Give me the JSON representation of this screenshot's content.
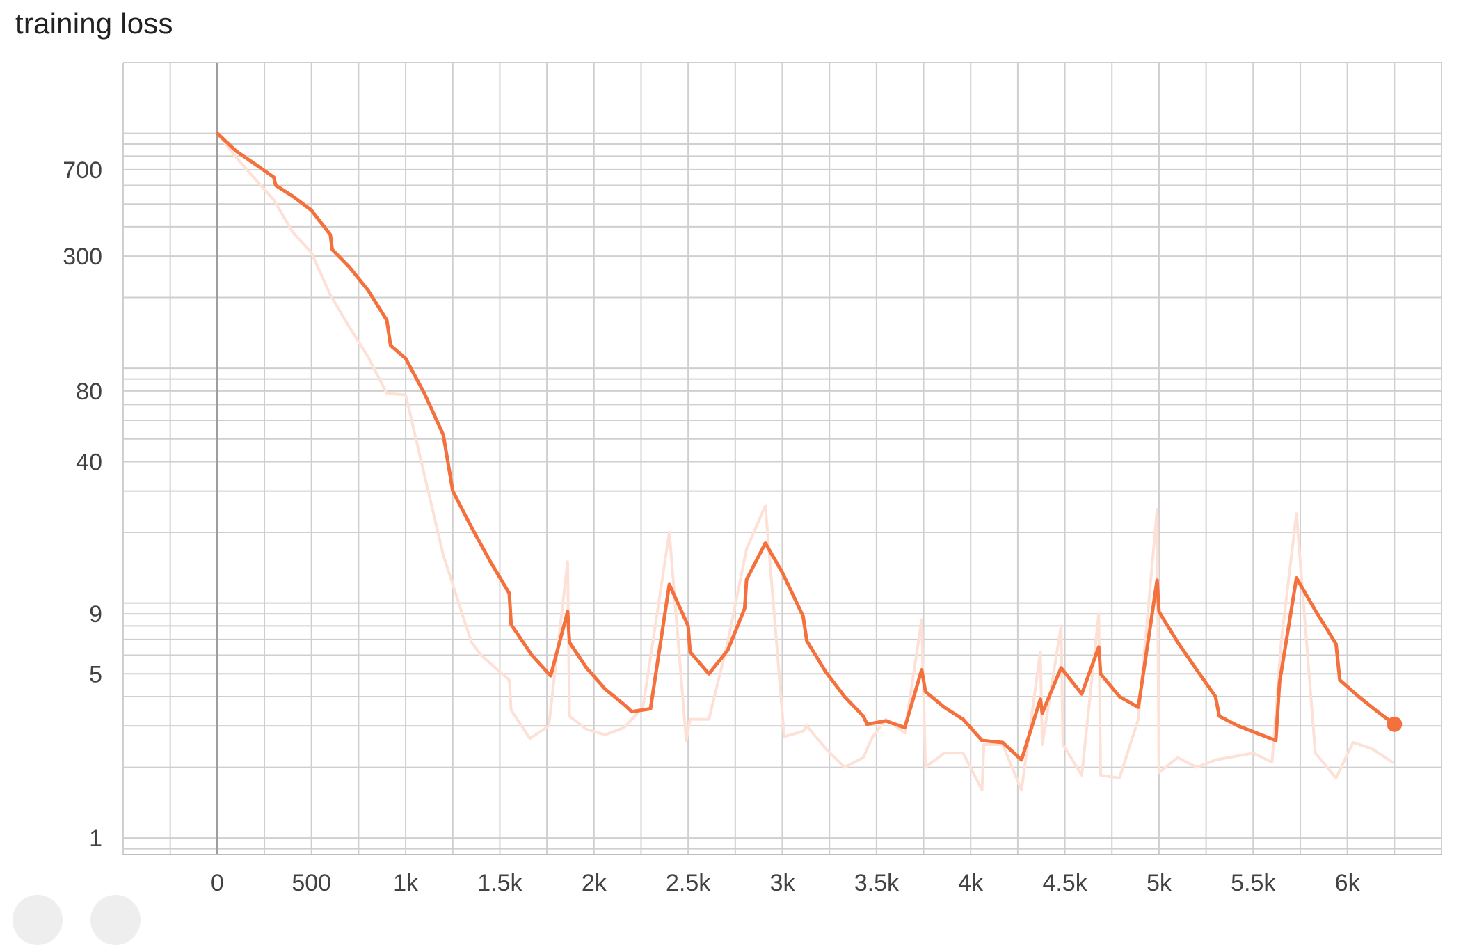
{
  "chart_data": {
    "type": "line",
    "title": "training loss",
    "yscale": "log",
    "xlim": [
      -500,
      6500
    ],
    "ylim": [
      0.85,
      2000
    ],
    "x_ticks": [
      {
        "value": 0,
        "label": "0"
      },
      {
        "value": 500,
        "label": "500"
      },
      {
        "value": 1000,
        "label": "1k"
      },
      {
        "value": 1500,
        "label": "1.5k"
      },
      {
        "value": 2000,
        "label": "2k"
      },
      {
        "value": 2500,
        "label": "2.5k"
      },
      {
        "value": 3000,
        "label": "3k"
      },
      {
        "value": 3500,
        "label": "3.5k"
      },
      {
        "value": 4000,
        "label": "4k"
      },
      {
        "value": 4500,
        "label": "4.5k"
      },
      {
        "value": 5000,
        "label": "5k"
      },
      {
        "value": 5500,
        "label": "5.5k"
      },
      {
        "value": 6000,
        "label": "6k"
      }
    ],
    "y_ticks": [
      {
        "value": 1,
        "label": "1"
      },
      {
        "value": 5,
        "label": "5"
      },
      {
        "value": 9,
        "label": "9"
      },
      {
        "value": 40,
        "label": "40"
      },
      {
        "value": 80,
        "label": "80"
      },
      {
        "value": 300,
        "label": "300"
      },
      {
        "value": 700,
        "label": "700"
      }
    ],
    "grid": true,
    "colors": {
      "smoothed": "#f4703c",
      "raw": "#fde0d6",
      "grid": "#cfcfcf",
      "zero_axis": "#9e9e9e"
    },
    "series": [
      {
        "role": "raw",
        "points": [
          [
            0,
            1000
          ],
          [
            100,
            790
          ],
          [
            200,
            640
          ],
          [
            300,
            520
          ],
          [
            400,
            380
          ],
          [
            500,
            310
          ],
          [
            600,
            205
          ],
          [
            700,
            150
          ],
          [
            800,
            112
          ],
          [
            900,
            78
          ],
          [
            1000,
            77
          ],
          [
            1100,
            35
          ],
          [
            1200,
            16
          ],
          [
            1300,
            9
          ],
          [
            1350,
            6.8
          ],
          [
            1400,
            6.0
          ],
          [
            1500,
            5.1
          ],
          [
            1550,
            4.7
          ],
          [
            1560,
            3.5
          ],
          [
            1660,
            2.65
          ],
          [
            1760,
            3.0
          ],
          [
            1860,
            15
          ],
          [
            1870,
            3.3
          ],
          [
            1960,
            2.9
          ],
          [
            2060,
            2.75
          ],
          [
            2160,
            2.95
          ],
          [
            2260,
            3.6
          ],
          [
            2400,
            20
          ],
          [
            2490,
            2.6
          ],
          [
            2510,
            3.2
          ],
          [
            2610,
            3.2
          ],
          [
            2710,
            6.8
          ],
          [
            2810,
            17
          ],
          [
            2910,
            26
          ],
          [
            3010,
            2.7
          ],
          [
            3110,
            2.85
          ],
          [
            3130,
            3.0
          ],
          [
            3230,
            2.4
          ],
          [
            3330,
            2.0
          ],
          [
            3430,
            2.2
          ],
          [
            3480,
            2.7
          ],
          [
            3550,
            3.2
          ],
          [
            3650,
            2.8
          ],
          [
            3740,
            8.5
          ],
          [
            3760,
            2.0
          ],
          [
            3860,
            2.3
          ],
          [
            3960,
            2.3
          ],
          [
            4060,
            1.6
          ],
          [
            4070,
            2.5
          ],
          [
            4170,
            2.5
          ],
          [
            4270,
            1.6
          ],
          [
            4370,
            6.2
          ],
          [
            4380,
            2.5
          ],
          [
            4480,
            8
          ],
          [
            4490,
            2.5
          ],
          [
            4590,
            1.85
          ],
          [
            4680,
            9
          ],
          [
            4690,
            1.85
          ],
          [
            4790,
            1.8
          ],
          [
            4890,
            3.2
          ],
          [
            4990,
            25
          ],
          [
            5000,
            1.9
          ],
          [
            5100,
            2.2
          ],
          [
            5200,
            2.0
          ],
          [
            5300,
            2.15
          ],
          [
            5500,
            2.3
          ],
          [
            5600,
            2.1
          ],
          [
            5650,
            7
          ],
          [
            5730,
            24
          ],
          [
            5830,
            2.3
          ],
          [
            5940,
            1.8
          ],
          [
            6030,
            2.55
          ],
          [
            6130,
            2.4
          ],
          [
            6240,
            2.1
          ]
        ]
      },
      {
        "role": "smoothed",
        "points": [
          [
            0,
            1000
          ],
          [
            100,
            840
          ],
          [
            200,
            740
          ],
          [
            300,
            650
          ],
          [
            310,
            600
          ],
          [
            400,
            540
          ],
          [
            500,
            470
          ],
          [
            600,
            370
          ],
          [
            610,
            320
          ],
          [
            700,
            270
          ],
          [
            800,
            215
          ],
          [
            900,
            160
          ],
          [
            920,
            125
          ],
          [
            1000,
            110
          ],
          [
            1100,
            78
          ],
          [
            1200,
            52
          ],
          [
            1250,
            30
          ],
          [
            1350,
            21
          ],
          [
            1450,
            15
          ],
          [
            1550,
            11
          ],
          [
            1560,
            8.1
          ],
          [
            1670,
            6
          ],
          [
            1770,
            4.9
          ],
          [
            1860,
            9.2
          ],
          [
            1870,
            6.8
          ],
          [
            1960,
            5.3
          ],
          [
            2060,
            4.3
          ],
          [
            2160,
            3.7
          ],
          [
            2200,
            3.45
          ],
          [
            2300,
            3.55
          ],
          [
            2400,
            12
          ],
          [
            2500,
            8
          ],
          [
            2510,
            6.2
          ],
          [
            2610,
            5
          ],
          [
            2710,
            6.3
          ],
          [
            2800,
            9.5
          ],
          [
            2810,
            12.6
          ],
          [
            2910,
            18
          ],
          [
            3000,
            13.5
          ],
          [
            3110,
            8.8
          ],
          [
            3130,
            6.9
          ],
          [
            3230,
            5.1
          ],
          [
            3330,
            4
          ],
          [
            3430,
            3.3
          ],
          [
            3450,
            3.05
          ],
          [
            3550,
            3.15
          ],
          [
            3650,
            2.95
          ],
          [
            3740,
            5.2
          ],
          [
            3760,
            4.2
          ],
          [
            3860,
            3.6
          ],
          [
            3960,
            3.2
          ],
          [
            4060,
            2.6
          ],
          [
            4170,
            2.55
          ],
          [
            4270,
            2.15
          ],
          [
            4370,
            3.9
          ],
          [
            4380,
            3.4
          ],
          [
            4480,
            5.3
          ],
          [
            4590,
            4.1
          ],
          [
            4680,
            6.5
          ],
          [
            4690,
            5
          ],
          [
            4790,
            4
          ],
          [
            4890,
            3.6
          ],
          [
            4990,
            12.5
          ],
          [
            5000,
            9.2
          ],
          [
            5100,
            6.8
          ],
          [
            5200,
            5.2
          ],
          [
            5300,
            4
          ],
          [
            5320,
            3.3
          ],
          [
            5420,
            3
          ],
          [
            5620,
            2.6
          ],
          [
            5640,
            4.6
          ],
          [
            5730,
            12.8
          ],
          [
            5830,
            9.3
          ],
          [
            5940,
            6.7
          ],
          [
            5960,
            4.7
          ],
          [
            6060,
            4
          ],
          [
            6160,
            3.45
          ],
          [
            6250,
            3.05
          ]
        ]
      }
    ]
  }
}
